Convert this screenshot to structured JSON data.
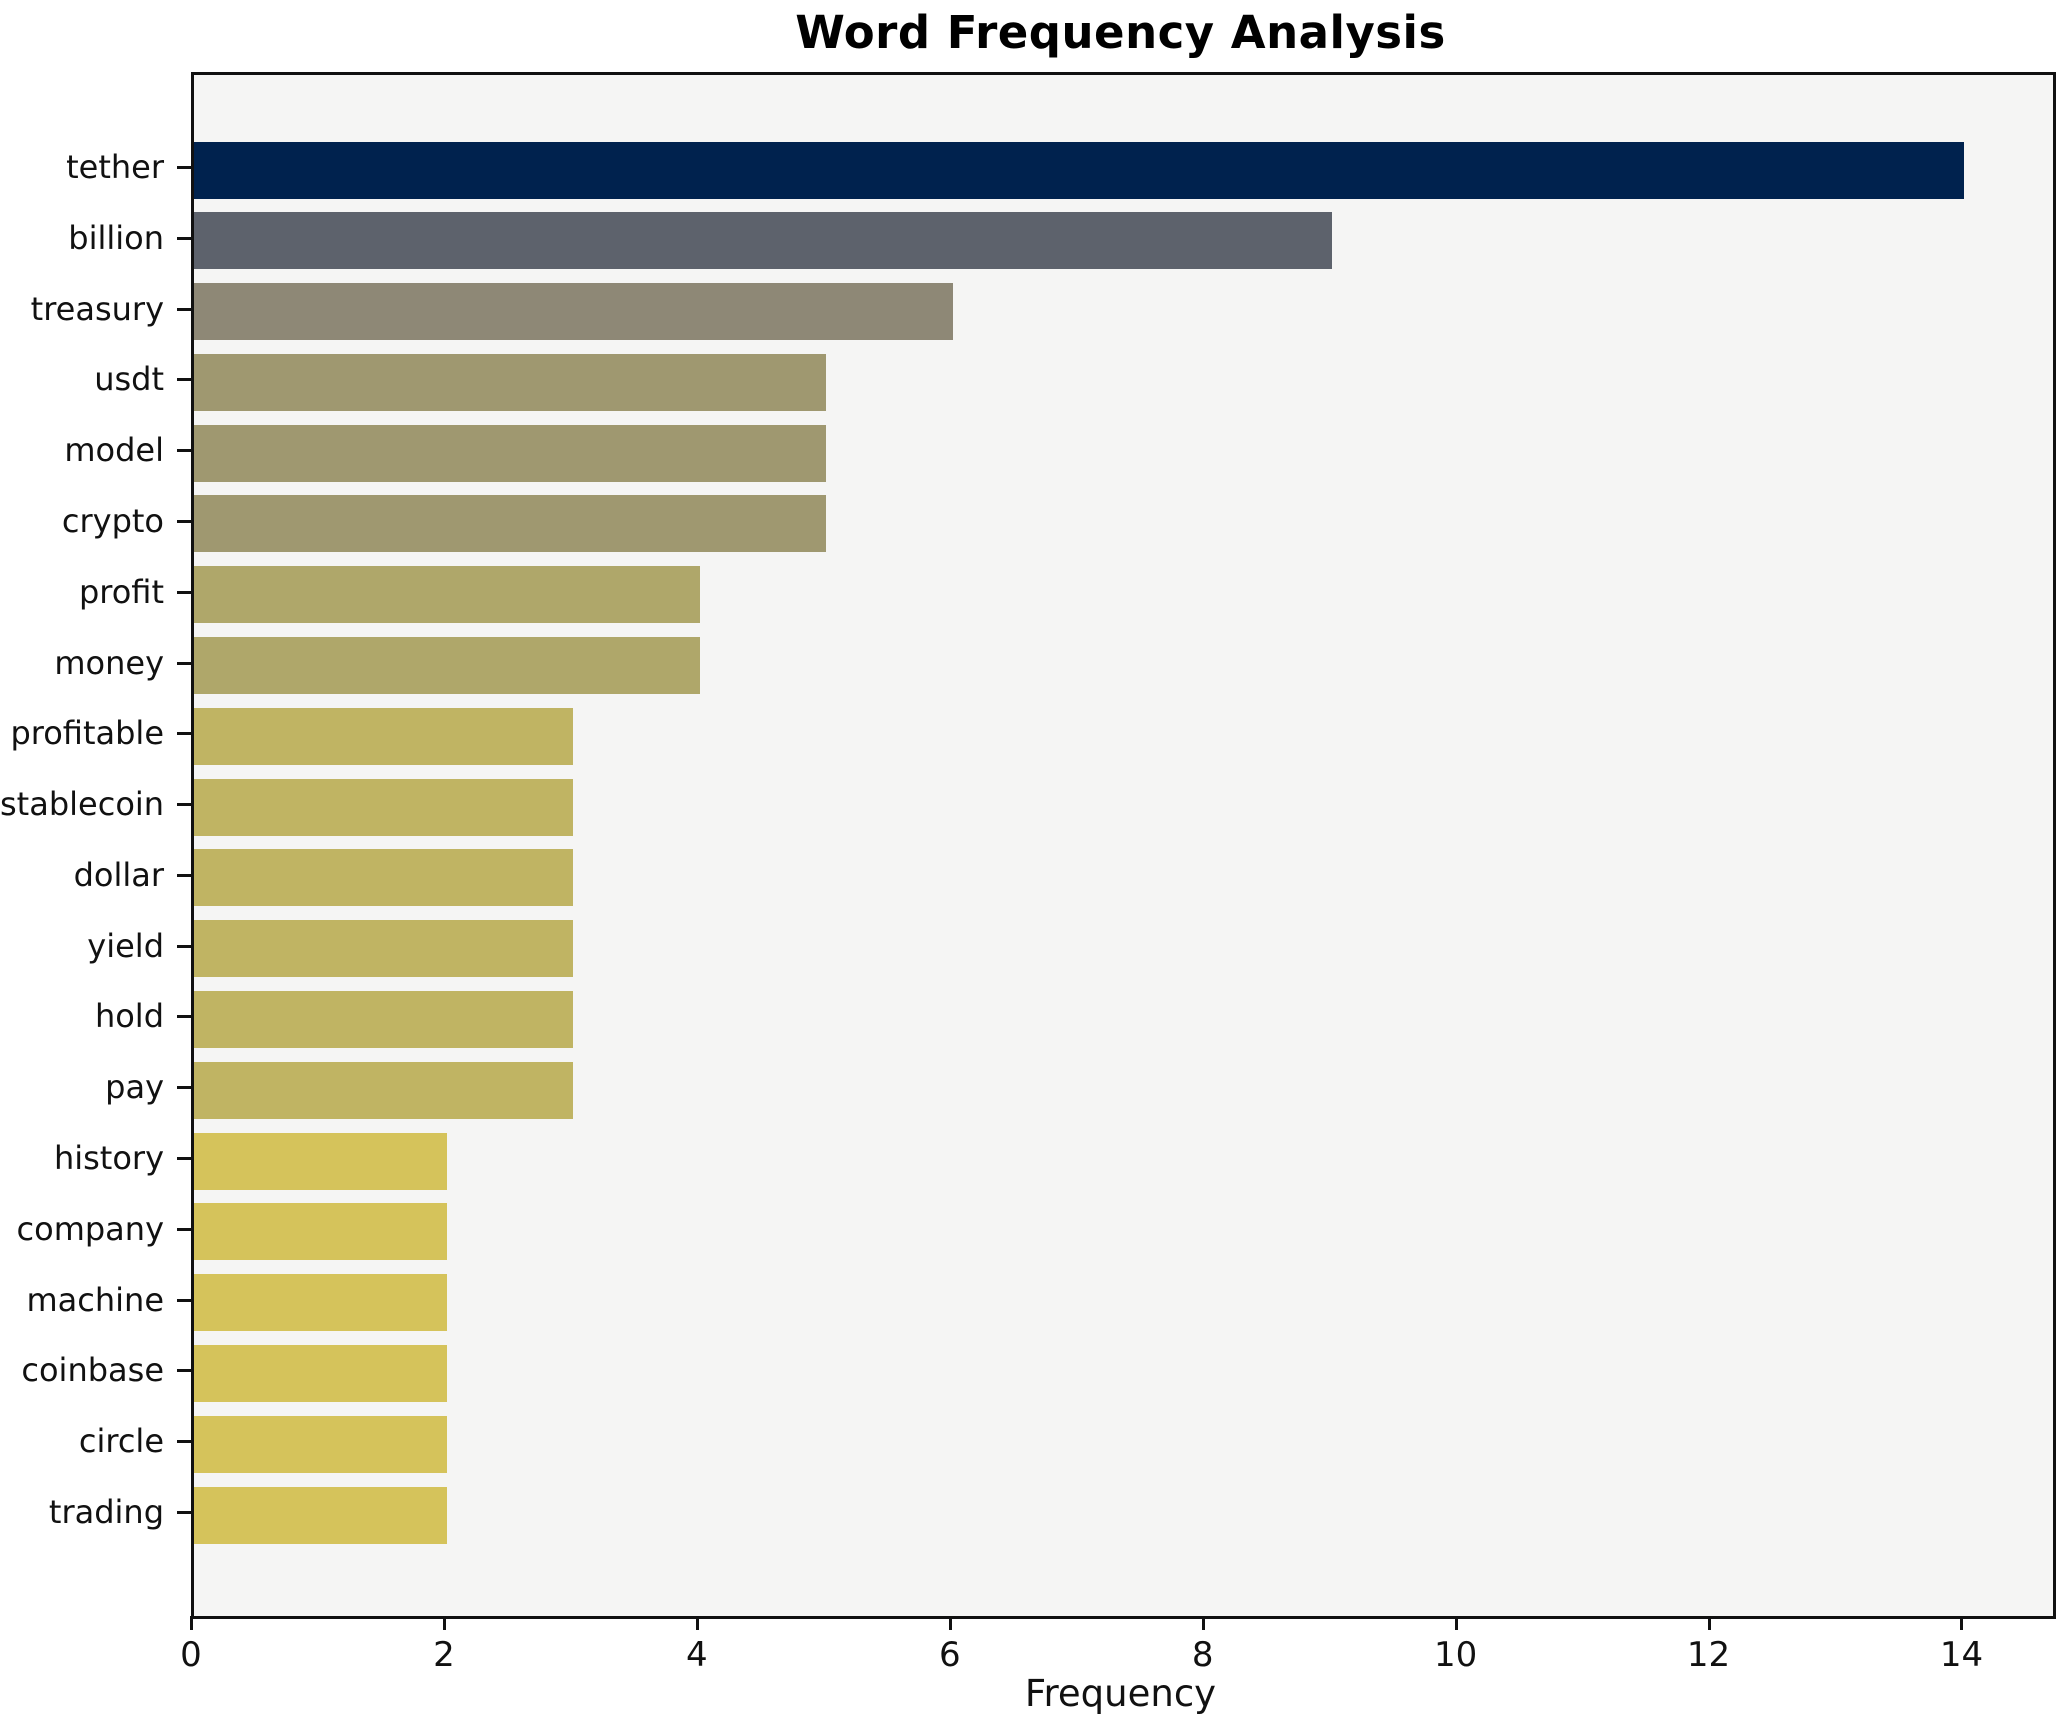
{
  "figure": {
    "title": "Word Frequency Analysis",
    "xlabel": "Frequency"
  },
  "chart_data": {
    "type": "bar",
    "orientation": "horizontal",
    "title": "Word Frequency Analysis",
    "xlabel": "Frequency",
    "ylabel": "",
    "categories": [
      "tether",
      "billion",
      "treasury",
      "usdt",
      "model",
      "crypto",
      "profit",
      "money",
      "profitable",
      "stablecoin",
      "dollar",
      "yield",
      "hold",
      "pay",
      "history",
      "company",
      "machine",
      "coinbase",
      "circle",
      "trading"
    ],
    "values": [
      14,
      9,
      6,
      5,
      5,
      5,
      4,
      4,
      3,
      3,
      3,
      3,
      3,
      3,
      2,
      2,
      2,
      2,
      2,
      2
    ],
    "bar_colors": [
      "#00224e",
      "#5d626c",
      "#8e8876",
      "#9f9870",
      "#9f9870",
      "#9f9870",
      "#afa76a",
      "#afa76a",
      "#c0b463",
      "#c0b463",
      "#c0b463",
      "#c0b463",
      "#c0b463",
      "#c0b463",
      "#d5c35b",
      "#d5c35b",
      "#d5c35b",
      "#d5c35b",
      "#d5c35b",
      "#d5c35b"
    ],
    "x_ticks": [
      0,
      2,
      4,
      6,
      8,
      10,
      12,
      14
    ],
    "xlim": [
      0,
      14.7
    ],
    "grid": false,
    "legend": null,
    "colors": {
      "plot_background": "#f5f5f4",
      "figure_background": "#ffffff",
      "spine": "#111111",
      "text": "#111111"
    }
  }
}
